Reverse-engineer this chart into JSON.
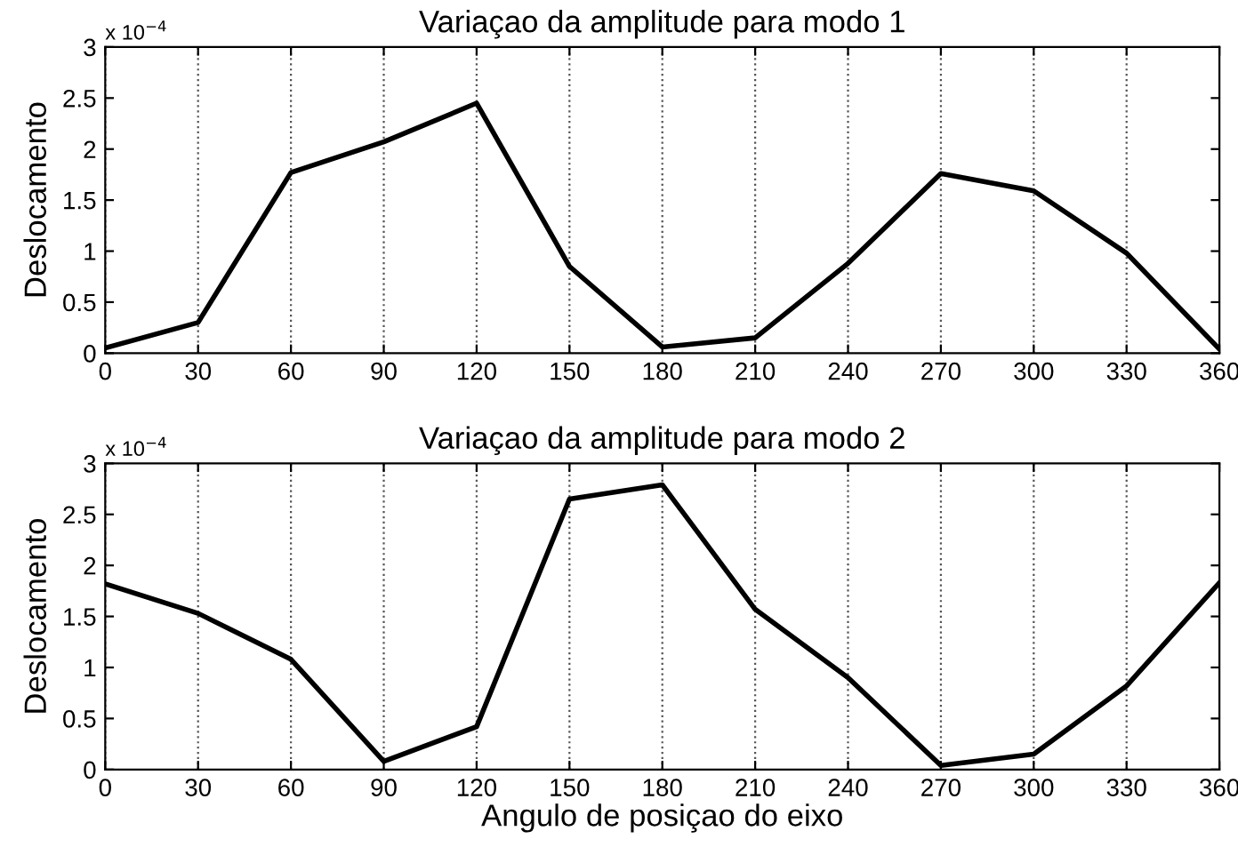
{
  "chart_data": [
    {
      "type": "line",
      "title": "Variaçao da amplitude para modo 1",
      "ylabel": "Deslocamento",
      "annotations": [
        "x 10$^{−4}$"
      ],
      "x": [
        0,
        30,
        60,
        90,
        120,
        150,
        180,
        210,
        240,
        270,
        300,
        330,
        360
      ],
      "series": [
        {
          "color": "#000000",
          "values": [
            0.05,
            0.3,
            1.77,
            2.07,
            2.45,
            0.85,
            0.06,
            0.15,
            0.88,
            1.76,
            1.59,
            0.98,
            0.04
          ]
        }
      ],
      "xlim": [
        0,
        360
      ],
      "xticks": [
        0,
        30,
        60,
        90,
        120,
        150,
        180,
        210,
        240,
        270,
        300,
        330,
        360
      ],
      "ylim": [
        0,
        3
      ],
      "yticks": [
        0,
        0.5,
        1,
        1.5,
        2,
        2.5,
        3
      ],
      "grid": "x",
      "line_style": "solid",
      "marker": "none"
    },
    {
      "type": "line",
      "title": "Variaçao da amplitude para modo 2",
      "xlabel": "Angulo de posiçao do eixo",
      "ylabel": "Deslocamento",
      "annotations": [
        "x 10$^{−4}$"
      ],
      "x": [
        0,
        30,
        60,
        90,
        120,
        150,
        180,
        210,
        240,
        270,
        300,
        330,
        360
      ],
      "series": [
        {
          "color": "#000000",
          "values": [
            1.82,
            1.53,
            1.08,
            0.08,
            0.42,
            2.65,
            2.79,
            1.57,
            0.9,
            0.04,
            0.15,
            0.82,
            1.83
          ]
        }
      ],
      "xlim": [
        0,
        360
      ],
      "xticks": [
        0,
        30,
        60,
        90,
        120,
        150,
        180,
        210,
        240,
        270,
        300,
        330,
        360
      ],
      "ylim": [
        0,
        3
      ],
      "yticks": [
        0,
        0.5,
        1,
        1.5,
        2,
        2.5,
        3
      ],
      "grid": "x",
      "line_style": "solid",
      "marker": "none"
    }
  ]
}
